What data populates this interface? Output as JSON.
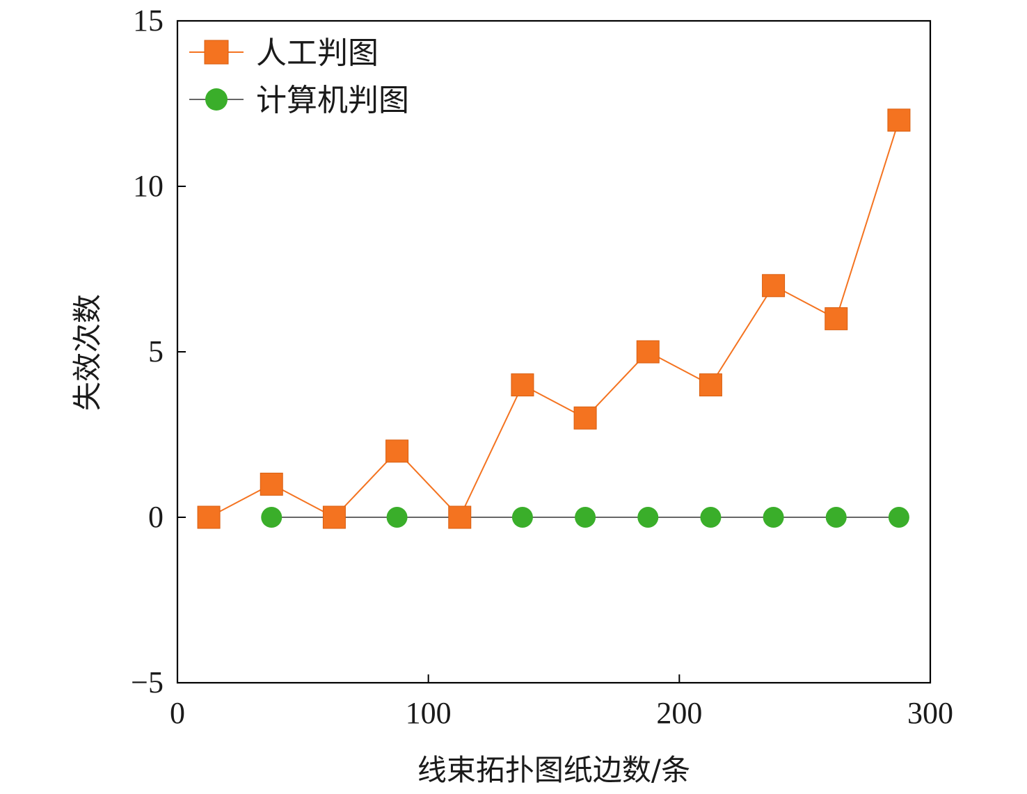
{
  "chart_data": {
    "type": "line",
    "title": "",
    "xlabel": "线束拓扑图纸边数/条",
    "ylabel": "失效次数",
    "xlim": [
      0,
      300
    ],
    "ylim": [
      -5,
      15
    ],
    "x_ticks": [
      0,
      100,
      200,
      300
    ],
    "y_ticks": [
      -5,
      0,
      5,
      10,
      15
    ],
    "x_tick_labels": [
      "0",
      "100",
      "200",
      "300"
    ],
    "y_tick_labels": [
      "−5",
      "0",
      "5",
      "10",
      "15"
    ],
    "grid": false,
    "legend_position": "top-left",
    "series": [
      {
        "name": "人工判图",
        "marker": "square",
        "color": "#f47320",
        "line_color": "#f47320",
        "points": [
          {
            "x": 12.5,
            "y": 0
          },
          {
            "x": 37.5,
            "y": 1
          },
          {
            "x": 62.5,
            "y": 0
          },
          {
            "x": 87.5,
            "y": 2
          },
          {
            "x": 112.5,
            "y": 0
          },
          {
            "x": 137.5,
            "y": 4
          },
          {
            "x": 162.5,
            "y": 3
          },
          {
            "x": 187.5,
            "y": 5
          },
          {
            "x": 212.5,
            "y": 4
          },
          {
            "x": 237.5,
            "y": 7
          },
          {
            "x": 262.5,
            "y": 6
          },
          {
            "x": 287.5,
            "y": 12
          }
        ]
      },
      {
        "name": "计算机判图",
        "marker": "circle",
        "color": "#3aae2a",
        "line_color": "#666666",
        "points": [
          {
            "x": 37.5,
            "y": 0
          },
          {
            "x": 87.5,
            "y": 0
          },
          {
            "x": 137.5,
            "y": 0
          },
          {
            "x": 162.5,
            "y": 0
          },
          {
            "x": 187.5,
            "y": 0
          },
          {
            "x": 212.5,
            "y": 0
          },
          {
            "x": 237.5,
            "y": 0
          },
          {
            "x": 262.5,
            "y": 0
          },
          {
            "x": 287.5,
            "y": 0
          }
        ]
      }
    ]
  }
}
